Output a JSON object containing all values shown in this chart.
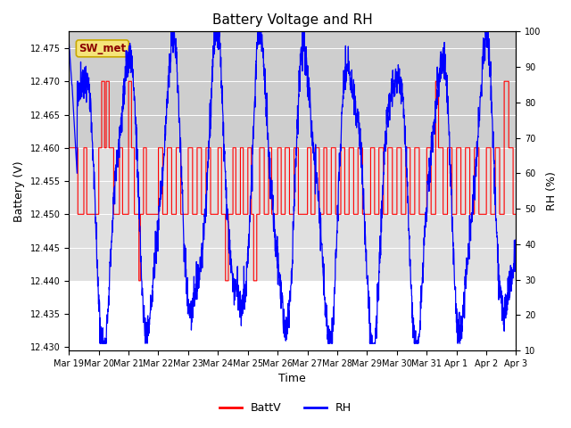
{
  "title": "Battery Voltage and RH",
  "xlabel": "Time",
  "ylabel_left": "Battery (V)",
  "ylabel_right": "RH (%)",
  "ylim_left": [
    12.4295,
    12.4775
  ],
  "ylim_right": [
    10,
    100
  ],
  "yticks_left": [
    12.43,
    12.435,
    12.44,
    12.445,
    12.45,
    12.455,
    12.46,
    12.465,
    12.47,
    12.475
  ],
  "yticks_right": [
    10,
    20,
    30,
    40,
    50,
    60,
    70,
    80,
    90,
    100
  ],
  "station_label": "SW_met",
  "station_box_facecolor": "#f5e47a",
  "station_box_edgecolor": "#c8a800",
  "station_text_color": "#8b0000",
  "batt_color": "#ff0000",
  "rh_color": "#0000ff",
  "band_light_color": "#e0e0e0",
  "band_dark_color": "#cecece",
  "title_fontsize": 11,
  "tick_fontsize": 7,
  "label_fontsize": 9,
  "legend_fontsize": 9,
  "tick_labels": [
    "Mar 19",
    "Mar 20",
    "Mar 21",
    "Mar 22",
    "Mar 23",
    "Mar 24",
    "Mar 25",
    "Mar 26",
    "Mar 27",
    "Mar 28",
    "Mar 29",
    "Mar 30",
    "Mar 31",
    "Apr 1",
    "Apr 2",
    "Apr 3"
  ]
}
